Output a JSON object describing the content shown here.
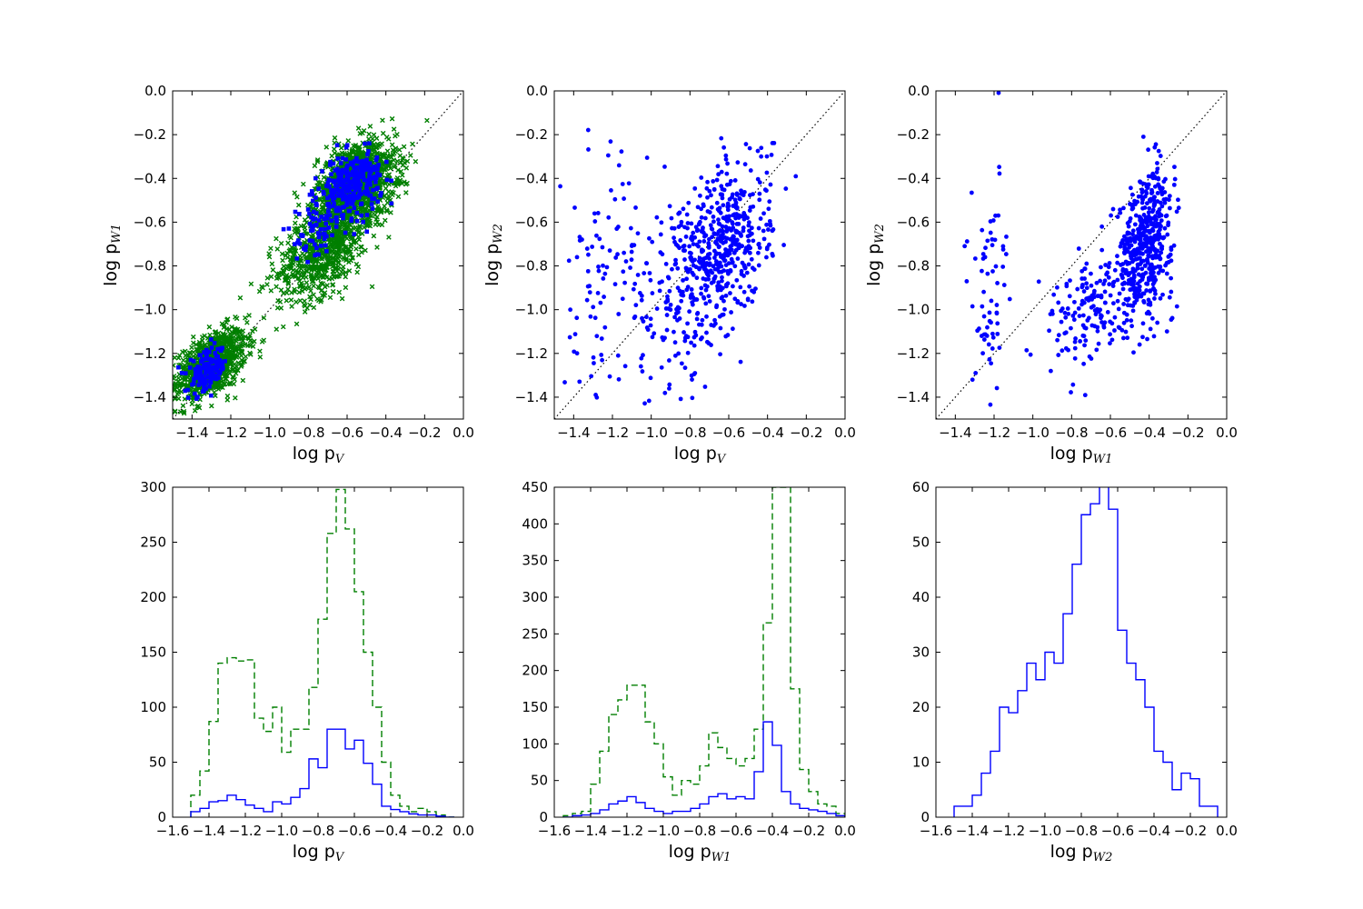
{
  "chart_data": [
    {
      "type": "scatter",
      "xlabel": "log p",
      "xlabel_sub": "V",
      "ylabel": "log p",
      "ylabel_sub": "W1",
      "xlim": [
        -1.5,
        0.0
      ],
      "ylim": [
        -1.5,
        0.0
      ],
      "xticks": [
        -1.4,
        -1.2,
        -1.0,
        -0.8,
        -0.6,
        -0.4,
        -0.2,
        0.0
      ],
      "yticks": [
        -1.4,
        -1.2,
        -1.0,
        -0.8,
        -0.6,
        -0.4,
        -0.2,
        0.0
      ],
      "diagonal": true,
      "series": [
        {
          "marker": "x",
          "color": "#007f00",
          "count": 2900,
          "clusters": [
            {
              "cx": -1.3,
              "cy": -1.25,
              "sx": 0.09,
              "sy": 0.08,
              "n": 900,
              "rho": 0.5
            },
            {
              "cx": -0.72,
              "cy": -0.72,
              "sx": 0.12,
              "sy": 0.12,
              "n": 700,
              "rho": 0.5
            },
            {
              "cx": -0.55,
              "cy": -0.42,
              "sx": 0.1,
              "sy": 0.09,
              "n": 1300,
              "rho": 0.3
            }
          ]
        },
        {
          "marker": "square",
          "color": "#0000ff",
          "count": 500,
          "clusters": [
            {
              "cx": -1.32,
              "cy": -1.28,
              "sx": 0.05,
              "sy": 0.05,
              "n": 150,
              "rho": 0.4
            },
            {
              "cx": -0.75,
              "cy": -0.65,
              "sx": 0.06,
              "sy": 0.06,
              "n": 60,
              "rho": 0.3
            },
            {
              "cx": -0.58,
              "cy": -0.43,
              "sx": 0.08,
              "sy": 0.07,
              "n": 290,
              "rho": 0.3
            }
          ]
        }
      ]
    },
    {
      "type": "scatter",
      "xlabel": "log p",
      "xlabel_sub": "V",
      "ylabel": "log p",
      "ylabel_sub": "W2",
      "xlim": [
        -1.5,
        0.0
      ],
      "ylim": [
        -1.5,
        0.0
      ],
      "xticks": [
        -1.4,
        -1.2,
        -1.0,
        -0.8,
        -0.6,
        -0.4,
        -0.2,
        0.0
      ],
      "yticks": [
        -1.4,
        -1.2,
        -1.0,
        -0.8,
        -0.6,
        -0.4,
        -0.2,
        0.0
      ],
      "diagonal": true,
      "series": [
        {
          "marker": "dot",
          "color": "#0000ff",
          "count": 700,
          "clusters": [
            {
              "cx": -0.62,
              "cy": -0.7,
              "sx": 0.12,
              "sy": 0.2,
              "n": 450,
              "rho": 0.4
            },
            {
              "cx": -1.25,
              "cy": -0.9,
              "sx": 0.12,
              "sy": 0.28,
              "n": 100,
              "rho": 0.2
            },
            {
              "cx": -0.85,
              "cy": -0.95,
              "sx": 0.14,
              "sy": 0.25,
              "n": 150,
              "rho": 0.3
            }
          ]
        }
      ]
    },
    {
      "type": "scatter",
      "xlabel": "log p",
      "xlabel_sub": "W1",
      "ylabel": "log p",
      "ylabel_sub": "W2",
      "xlim": [
        -1.5,
        0.0
      ],
      "ylim": [
        -1.5,
        0.0
      ],
      "xticks": [
        -1.4,
        -1.2,
        -1.0,
        -0.8,
        -0.6,
        -0.4,
        -0.2,
        0.0
      ],
      "yticks": [
        -1.4,
        -1.2,
        -1.0,
        -0.8,
        -0.6,
        -0.4,
        -0.2,
        0.0
      ],
      "diagonal": true,
      "series": [
        {
          "marker": "dot",
          "color": "#0000ff",
          "count": 700,
          "clusters": [
            {
              "cx": -0.42,
              "cy": -0.7,
              "sx": 0.07,
              "sy": 0.17,
              "n": 480,
              "rho": 0.3
            },
            {
              "cx": -1.22,
              "cy": -0.95,
              "sx": 0.06,
              "sy": 0.28,
              "n": 70,
              "rho": 0.1
            },
            {
              "cx": -0.72,
              "cy": -1.0,
              "sx": 0.1,
              "sy": 0.15,
              "n": 150,
              "rho": 0.4
            }
          ]
        }
      ]
    },
    {
      "type": "histogram",
      "xlabel": "log p",
      "xlabel_sub": "V",
      "xlim": [
        -1.6,
        0.0
      ],
      "ylim": [
        0,
        300
      ],
      "xticks": [
        -1.6,
        -1.4,
        -1.2,
        -1.0,
        -0.8,
        -0.6,
        -0.4,
        -0.2,
        0.0
      ],
      "yticks": [
        0,
        50,
        100,
        150,
        200,
        250,
        300
      ],
      "bin_start": -1.5,
      "bin_width": 0.05,
      "series": [
        {
          "style": "dashed",
          "color": "#007f00",
          "counts": [
            20,
            42,
            87,
            140,
            145,
            142,
            143,
            90,
            78,
            100,
            59,
            80,
            80,
            118,
            180,
            258,
            298,
            262,
            205,
            150,
            100,
            50,
            20,
            10,
            5,
            8,
            5,
            2,
            0
          ]
        },
        {
          "style": "solid",
          "color": "#0000ff",
          "counts": [
            5,
            8,
            14,
            15,
            20,
            16,
            11,
            8,
            5,
            14,
            12,
            18,
            26,
            53,
            45,
            80,
            80,
            62,
            70,
            49,
            30,
            10,
            7,
            5,
            3,
            2,
            2,
            1,
            0
          ]
        }
      ]
    },
    {
      "type": "histogram",
      "xlabel": "log p",
      "xlabel_sub": "W1",
      "xlim": [
        -1.6,
        0.0
      ],
      "ylim": [
        0,
        450
      ],
      "xticks": [
        -1.6,
        -1.4,
        -1.2,
        -1.0,
        -0.8,
        -0.6,
        -0.4,
        -0.2,
        0.0
      ],
      "yticks": [
        0,
        50,
        100,
        150,
        200,
        250,
        300,
        350,
        400,
        450
      ],
      "bin_start": -1.55,
      "bin_width": 0.05,
      "series": [
        {
          "style": "dashed",
          "color": "#007f00",
          "counts": [
            2,
            5,
            8,
            45,
            90,
            140,
            160,
            180,
            180,
            130,
            100,
            55,
            30,
            50,
            45,
            70,
            115,
            95,
            80,
            70,
            80,
            120,
            265,
            450,
            450,
            175,
            65,
            35,
            18,
            15,
            5
          ]
        },
        {
          "style": "solid",
          "color": "#0000ff",
          "counts": [
            0,
            2,
            3,
            5,
            10,
            18,
            22,
            28,
            20,
            12,
            8,
            5,
            8,
            8,
            12,
            18,
            28,
            32,
            25,
            28,
            25,
            62,
            130,
            98,
            35,
            18,
            12,
            10,
            8,
            5,
            2
          ]
        }
      ]
    },
    {
      "type": "histogram",
      "xlabel": "log p",
      "xlabel_sub": "W2",
      "xlim": [
        -1.6,
        0.0
      ],
      "ylim": [
        0,
        60
      ],
      "xticks": [
        -1.6,
        -1.4,
        -1.2,
        -1.0,
        -0.8,
        -0.6,
        -0.4,
        -0.2,
        0.0
      ],
      "yticks": [
        0,
        10,
        20,
        30,
        40,
        50,
        60
      ],
      "bin_start": -1.5,
      "bin_width": 0.05,
      "series": [
        {
          "style": "solid",
          "color": "#0000ff",
          "counts": [
            2,
            2,
            4,
            8,
            12,
            20,
            19,
            23,
            28,
            25,
            30,
            28,
            37,
            46,
            55,
            57,
            62,
            56,
            34,
            28,
            25,
            20,
            12,
            10,
            5,
            8,
            7,
            2,
            2
          ]
        }
      ]
    }
  ]
}
